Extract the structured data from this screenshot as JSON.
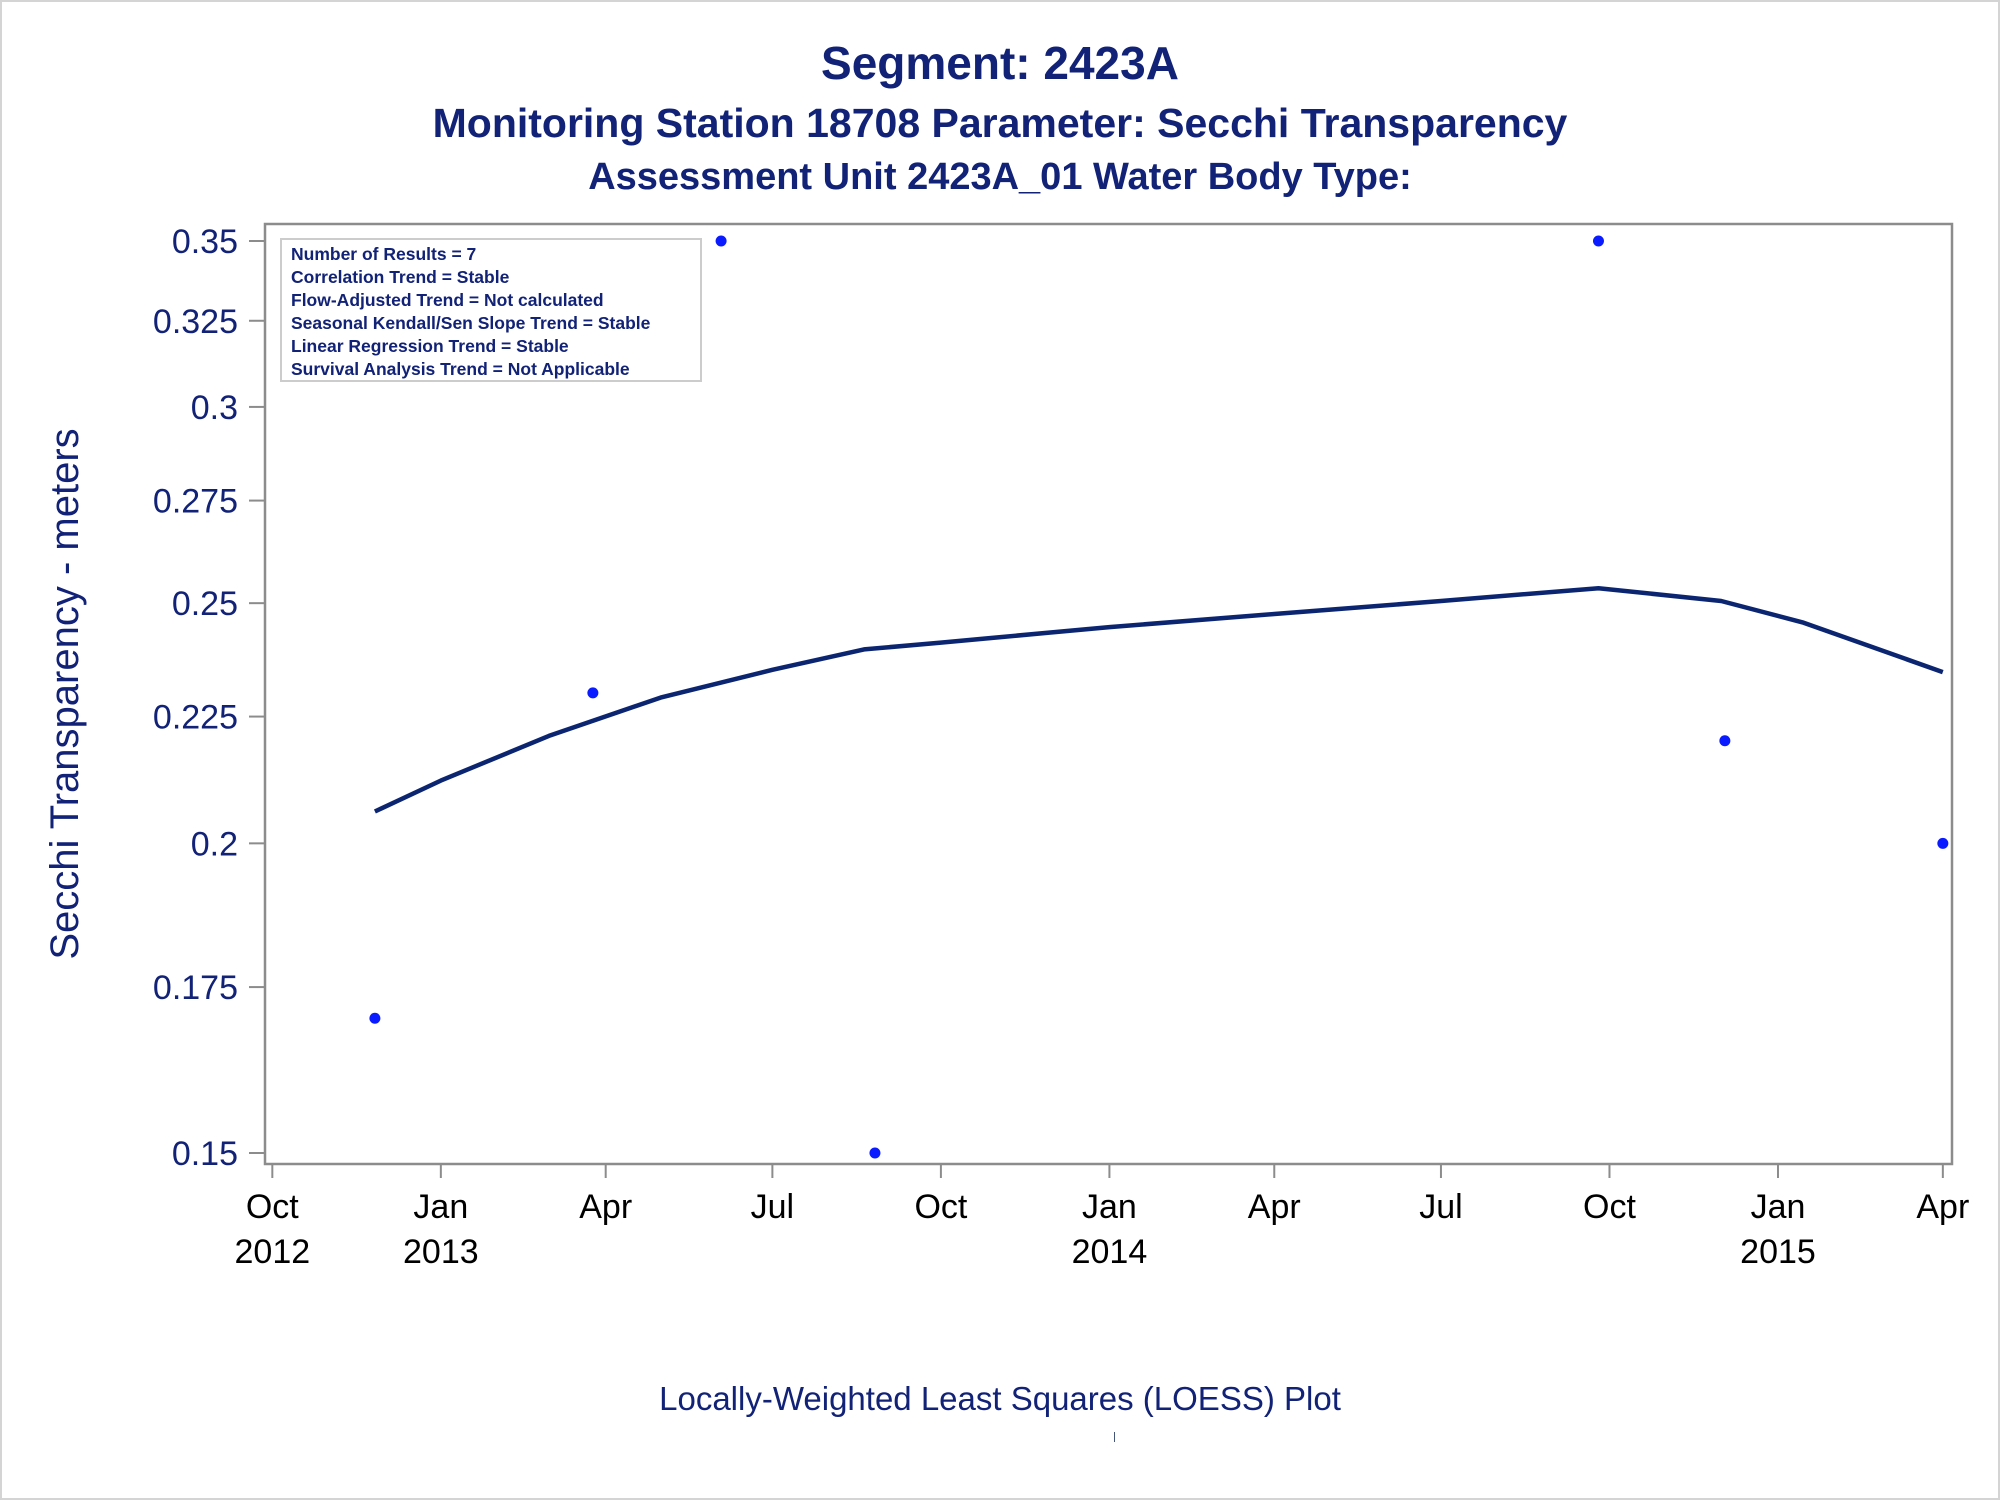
{
  "colors": {
    "text": "#112277",
    "line": "#0b2570",
    "points": "#0a1cff",
    "axis": "#8c8c8c"
  },
  "footer": {
    "caption": "Locally-Weighted Least Squares (LOESS) Plot"
  },
  "chart_data": {
    "type": "scatter",
    "title": "Segment: 2423A",
    "subtitle": "Monitoring Station 18708 Parameter: Secchi Transparency",
    "subtitle2": "Assessment Unit 2423A_01   Water Body Type:",
    "xlabel": "",
    "ylabel": "Secchi Transparency - meters",
    "ylim": [
      0.15,
      0.35
    ],
    "ylog": true,
    "yticks": [
      0.15,
      0.175,
      0.2,
      0.225,
      0.25,
      0.275,
      0.3,
      0.325,
      0.35
    ],
    "ytick_labels": [
      "0.15",
      "0.175",
      "0.2",
      "0.225",
      "0.25",
      "0.275",
      "0.3",
      "0.325",
      "0.35"
    ],
    "xlim": [
      "2012-09-27",
      "2015-04-06"
    ],
    "xticks": [
      {
        "date": "2012-10-01",
        "month": "Oct",
        "year": "2012"
      },
      {
        "date": "2013-01-01",
        "month": "Jan",
        "year": "2013"
      },
      {
        "date": "2013-04-01",
        "month": "Apr",
        "year": ""
      },
      {
        "date": "2013-07-01",
        "month": "Jul",
        "year": ""
      },
      {
        "date": "2013-10-01",
        "month": "Oct",
        "year": ""
      },
      {
        "date": "2014-01-01",
        "month": "Jan",
        "year": "2014"
      },
      {
        "date": "2014-04-01",
        "month": "Apr",
        "year": ""
      },
      {
        "date": "2014-07-01",
        "month": "Jul",
        "year": ""
      },
      {
        "date": "2014-10-01",
        "month": "Oct",
        "year": ""
      },
      {
        "date": "2015-01-01",
        "month": "Jan",
        "year": "2015"
      },
      {
        "date": "2015-04-01",
        "month": "Apr",
        "year": ""
      }
    ],
    "series": [
      {
        "type": "scatter",
        "points": [
          {
            "date": "2012-11-26",
            "value": 0.17
          },
          {
            "date": "2013-03-25",
            "value": 0.23
          },
          {
            "date": "2013-06-03",
            "value": 0.35
          },
          {
            "date": "2013-08-26",
            "value": 0.15
          },
          {
            "date": "2014-09-25",
            "value": 0.35
          },
          {
            "date": "2014-12-03",
            "value": 0.22
          },
          {
            "date": "2015-04-01",
            "value": 0.2
          }
        ]
      },
      {
        "type": "line",
        "points": [
          {
            "date": "2012-11-26",
            "value": 0.206
          },
          {
            "date": "2013-01-01",
            "value": 0.212
          },
          {
            "date": "2013-03-01",
            "value": 0.221
          },
          {
            "date": "2013-05-01",
            "value": 0.229
          },
          {
            "date": "2013-07-01",
            "value": 0.235
          },
          {
            "date": "2013-08-20",
            "value": 0.2395
          },
          {
            "date": "2013-10-01",
            "value": 0.241
          },
          {
            "date": "2014-01-01",
            "value": 0.2445
          },
          {
            "date": "2014-04-01",
            "value": 0.2475
          },
          {
            "date": "2014-07-01",
            "value": 0.2505
          },
          {
            "date": "2014-09-25",
            "value": 0.2535
          },
          {
            "date": "2014-12-01",
            "value": 0.2505
          },
          {
            "date": "2015-01-15",
            "value": 0.2455
          },
          {
            "date": "2015-04-01",
            "value": 0.2345
          }
        ]
      }
    ],
    "annotations": [
      "Number of Results = 7",
      "Correlation Trend = Stable",
      "Flow-Adjusted Trend = Not calculated",
      "Seasonal Kendall/Sen Slope Trend = Stable",
      "Linear Regression Trend = Stable",
      "Survival Analysis Trend = Not Applicable"
    ],
    "annotation_placement": "top-left",
    "grid": false
  }
}
